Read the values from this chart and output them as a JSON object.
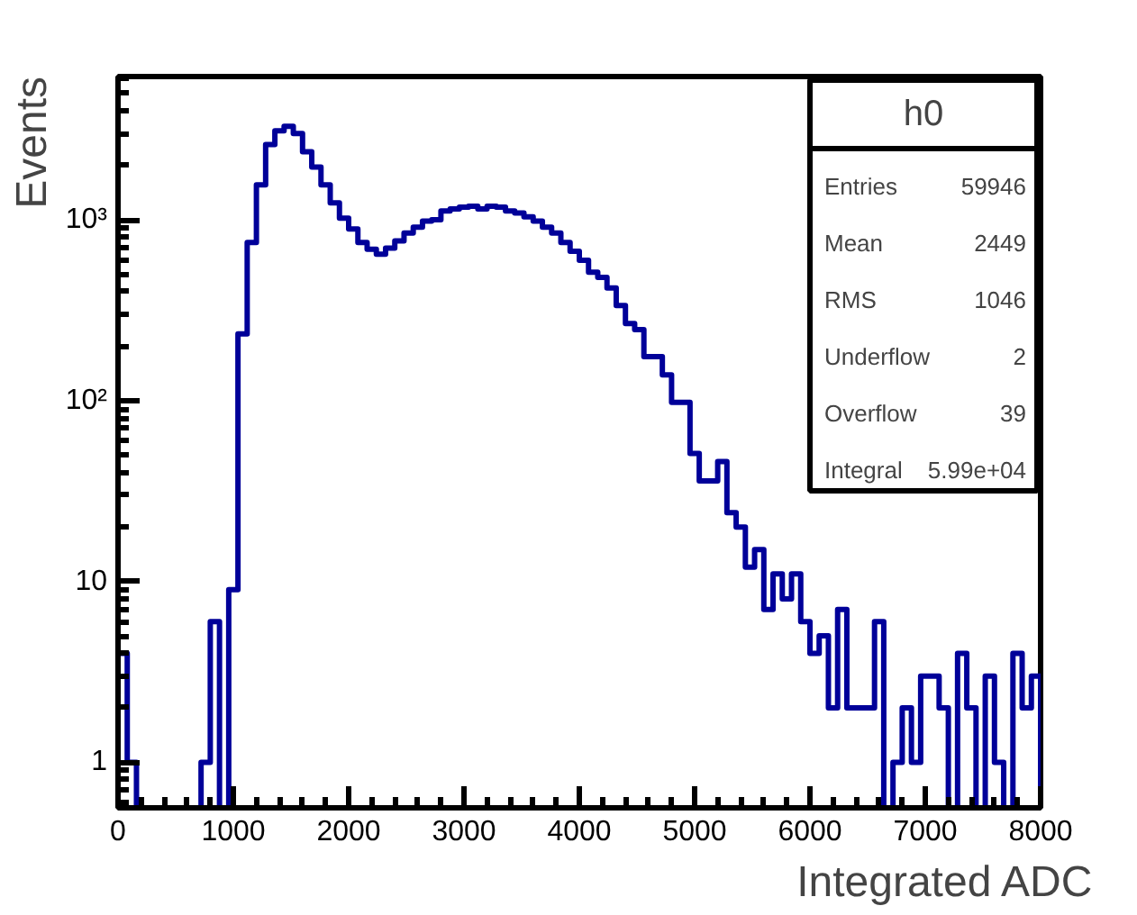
{
  "chart_data": {
    "type": "histogram",
    "title": "h0",
    "xlabel": "Integrated ADC",
    "ylabel": "Events",
    "bins": [
      0,
      80,
      160,
      240,
      320,
      400,
      480,
      560,
      640,
      720,
      800,
      880,
      960,
      1040,
      1120,
      1200,
      1280,
      1360,
      1440,
      1520,
      1600,
      1680,
      1760,
      1840,
      1920,
      2000,
      2080,
      2160,
      2240,
      2320,
      2400,
      2480,
      2560,
      2640,
      2720,
      2800,
      2880,
      2960,
      3040,
      3120,
      3200,
      3280,
      3360,
      3440,
      3520,
      3600,
      3680,
      3760,
      3840,
      3920,
      4000,
      4080,
      4160,
      4240,
      4320,
      4400,
      4480,
      4560,
      4640,
      4720,
      4800,
      4880,
      4960,
      5040,
      5120,
      5200,
      5280,
      5360,
      5440,
      5520,
      5600,
      5680,
      5760,
      5840,
      5920,
      6000,
      6080,
      6160,
      6240,
      6320,
      6400,
      6480,
      6560,
      6640,
      6720,
      6800,
      6880,
      6960,
      7040,
      7120,
      7200,
      7280,
      7360,
      7440,
      7520,
      7600,
      7680,
      7760,
      7840,
      7920,
      8000
    ],
    "values": [
      4,
      1,
      null,
      null,
      null,
      null,
      null,
      null,
      null,
      1,
      6,
      null,
      9,
      234,
      750,
      1560,
      2610,
      3110,
      3290,
      3000,
      2380,
      1960,
      1560,
      1240,
      1020,
      890,
      750,
      687,
      646,
      697,
      764,
      845,
      912,
      985,
      1000,
      1120,
      1150,
      1175,
      1190,
      1150,
      1190,
      1175,
      1120,
      1090,
      1040,
      985,
      912,
      845,
      750,
      670,
      598,
      513,
      480,
      420,
      336,
      267,
      247,
      175,
      175,
      139,
      98,
      98,
      51,
      36,
      36,
      46,
      24,
      20,
      12,
      15,
      7,
      11,
      8,
      11,
      6,
      4,
      5,
      2,
      7,
      2,
      2,
      2,
      6,
      null,
      1,
      2,
      1,
      3,
      3,
      2,
      null,
      4,
      2,
      null,
      3,
      1,
      null,
      4,
      2,
      3
    ],
    "color": "#000099",
    "xlim": [
      0,
      8000
    ],
    "ylim": [
      0.56,
      6200
    ],
    "log": "y",
    "xticks": [
      0,
      1000,
      2000,
      3000,
      4000,
      5000,
      6000,
      7000,
      8000
    ],
    "yticks": [
      1,
      10,
      {
        "value": 100,
        "label": "10²"
      },
      {
        "value": 1000,
        "label": "10³"
      }
    ],
    "annotations": [
      "Entries 59946",
      "Mean 2449",
      "RMS 1046",
      "Underflow 2",
      "Overflow 39",
      "Integral 5.99e+04"
    ]
  }
}
